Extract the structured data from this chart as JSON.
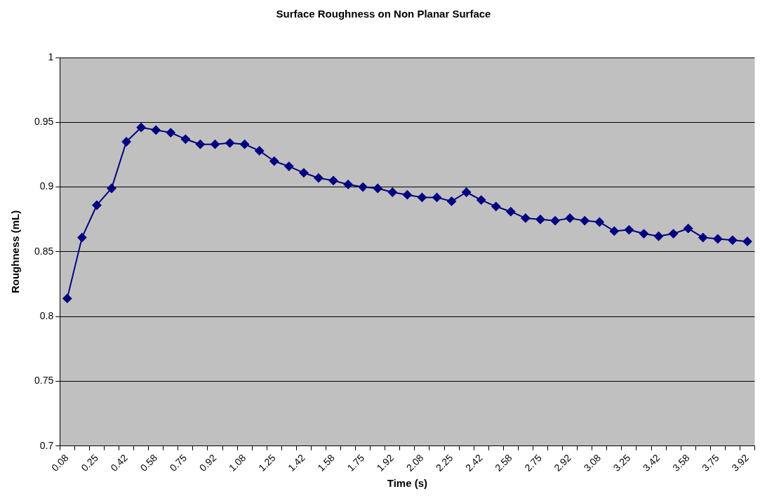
{
  "chart_data": {
    "type": "line",
    "title": "Surface Roughness on Non Planar Surface",
    "xlabel": "Time (s)",
    "ylabel": "Roughness (mL)",
    "categories": [
      "0.08",
      null,
      "0.25",
      null,
      "0.42",
      null,
      "0.58",
      null,
      "0.75",
      null,
      "0.92",
      null,
      "1.08",
      null,
      "1.25",
      null,
      "1.42",
      null,
      "1.58",
      null,
      "1.75",
      null,
      "1.92",
      null,
      "2.08",
      null,
      "2.25",
      null,
      "2.42",
      null,
      "2.58",
      null,
      "2.75",
      null,
      "2.92",
      null,
      "3.08",
      null,
      "3.25",
      null,
      "3.42",
      null,
      "3.58",
      null,
      "3.75",
      null,
      "3.92"
    ],
    "series": [
      {
        "color": "#000080",
        "values": [
          0.814,
          0.861,
          0.886,
          0.899,
          0.935,
          0.946,
          0.944,
          0.942,
          0.937,
          0.933,
          0.933,
          0.934,
          0.933,
          0.928,
          0.92,
          0.916,
          0.911,
          0.907,
          0.905,
          0.902,
          0.9,
          0.899,
          0.896,
          0.894,
          0.892,
          0.892,
          0.889,
          0.896,
          0.89,
          0.885,
          0.881,
          0.876,
          0.875,
          0.874,
          0.876,
          0.874,
          0.873,
          0.866,
          0.867,
          0.864,
          0.862,
          0.864,
          0.868,
          0.861,
          0.86,
          0.859,
          0.858
        ]
      }
    ],
    "ylim": [
      0.7,
      1
    ],
    "yticks": [
      0.7,
      0.75,
      0.8,
      0.85,
      0.9,
      0.95,
      1
    ],
    "grid": "y",
    "legend": false,
    "marker": "diamond",
    "line_style": "solid"
  }
}
